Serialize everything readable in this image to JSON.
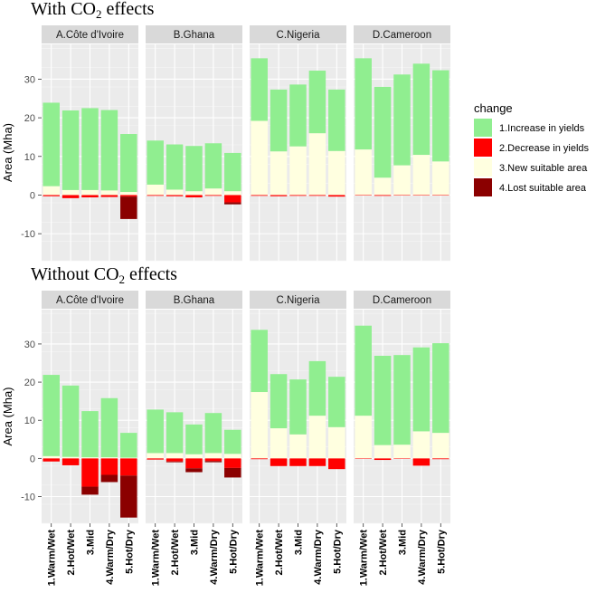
{
  "chart_data": [
    {
      "type": "bar",
      "stacked": true,
      "title": "With CO2 effects",
      "ylabel": "Area (Mha)",
      "ylim": [
        -17,
        39
      ],
      "yticks": [
        -10,
        0,
        10,
        20,
        30
      ],
      "categories": [
        "1.Warm/Wet",
        "2.Hot/Wet",
        "3.Mid",
        "4.Warm/Dry",
        "5.Hot/Dry"
      ],
      "panels": [
        {
          "name": "A.Côte d'Ivoire",
          "series": {
            "increase": [
              21.6,
              20.6,
              21.2,
              20.8,
              15.0
            ],
            "new": [
              2.3,
              1.3,
              1.3,
              1.2,
              0.8
            ],
            "decrease": [
              -0.3,
              -0.8,
              -0.6,
              -0.5,
              -0.4
            ],
            "lost": [
              0,
              0,
              0,
              0,
              -5.8
            ]
          }
        },
        {
          "name": "B.Ghana",
          "series": {
            "increase": [
              11.4,
              11.7,
              11.7,
              11.7,
              9.9
            ],
            "new": [
              2.7,
              1.4,
              1.0,
              1.7,
              1.0
            ],
            "decrease": [
              -0.2,
              -0.3,
              -0.6,
              -0.2,
              -1.9
            ],
            "lost": [
              0,
              0,
              0,
              0,
              -0.5
            ]
          }
        },
        {
          "name": "C.Nigeria",
          "series": {
            "increase": [
              16.2,
              16.0,
              16.0,
              16.2,
              15.9
            ],
            "new": [
              19.2,
              11.3,
              12.6,
              16.0,
              11.4
            ],
            "decrease": [
              -0.2,
              -0.3,
              -0.2,
              -0.2,
              -0.4
            ],
            "lost": [
              0,
              0,
              0,
              0,
              0
            ]
          }
        },
        {
          "name": "D.Cameroon",
          "series": {
            "increase": [
              23.6,
              23.5,
              23.5,
              23.6,
              23.6
            ],
            "new": [
              11.8,
              4.5,
              7.7,
              10.4,
              8.7
            ],
            "decrease": [
              -0.1,
              -0.2,
              -0.1,
              -0.1,
              -0.1
            ],
            "lost": [
              0,
              0,
              0,
              0,
              0
            ]
          }
        }
      ]
    },
    {
      "type": "bar",
      "stacked": true,
      "title": "Without CO2 effects",
      "ylabel": "Area (Mha)",
      "ylim": [
        -17,
        39
      ],
      "yticks": [
        -10,
        0,
        10,
        20,
        30
      ],
      "categories": [
        "1.Warm/Wet",
        "2.Hot/Wet",
        "3.Mid",
        "4.Warm/Dry",
        "5.Hot/Dry"
      ],
      "panels": [
        {
          "name": "A.Côte d'Ivoire",
          "series": {
            "increase": [
              21.3,
              18.7,
              12.1,
              15.5,
              6.5
            ],
            "new": [
              0.6,
              0.4,
              0.3,
              0.3,
              0.2
            ],
            "decrease": [
              -0.8,
              -1.8,
              -7.4,
              -4.3,
              -4.5
            ],
            "lost": [
              0,
              0,
              -2.1,
              -1.9,
              -11.0
            ]
          }
        },
        {
          "name": "B.Ghana",
          "series": {
            "increase": [
              11.4,
              10.7,
              7.8,
              10.5,
              6.3
            ],
            "new": [
              1.4,
              1.4,
              1.1,
              1.4,
              1.2
            ],
            "decrease": [
              -0.3,
              -0.8,
              -2.6,
              -0.7,
              -2.5
            ],
            "lost": [
              0,
              -0.2,
              -1.0,
              -0.3,
              -2.5
            ]
          }
        },
        {
          "name": "C.Nigeria",
          "series": {
            "increase": [
              16.3,
              14.2,
              14.4,
              14.3,
              13.2
            ],
            "new": [
              17.4,
              7.9,
              6.3,
              11.2,
              8.2
            ],
            "decrease": [
              -0.2,
              -2.0,
              -2.0,
              -2.0,
              -2.8
            ],
            "lost": [
              0,
              0,
              0,
              0,
              0
            ]
          }
        },
        {
          "name": "D.Cameroon",
          "series": {
            "increase": [
              23.6,
              23.4,
              23.5,
              22.0,
              23.5
            ],
            "new": [
              11.2,
              3.5,
              3.6,
              7.1,
              6.7
            ],
            "decrease": [
              -0.1,
              -0.4,
              -0.1,
              -1.9,
              -0.2
            ],
            "lost": [
              0,
              0,
              0,
              0,
              0
            ]
          }
        }
      ]
    }
  ],
  "legend": {
    "title": "change",
    "items": [
      {
        "key": "increase",
        "label": "1.Increase in yields",
        "color": "#90ee90"
      },
      {
        "key": "decrease",
        "label": "2.Decrease in yields",
        "color": "#ff0000"
      },
      {
        "key": "new",
        "label": "3.New suitable area",
        "color": "#ffffe0"
      },
      {
        "key": "lost",
        "label": "4.Lost suitable area",
        "color": "#8b0000"
      }
    ]
  }
}
